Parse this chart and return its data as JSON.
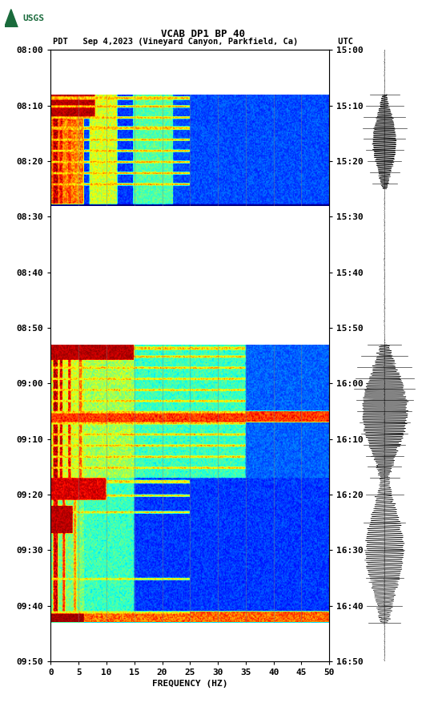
{
  "title_line1": "VCAB DP1 BP 40",
  "title_line2": "PDT   Sep 4,2023 (Vineyard Canyon, Parkfield, Ca)        UTC",
  "left_times": [
    "08:00",
    "08:10",
    "08:20",
    "08:30",
    "08:40",
    "08:50",
    "09:00",
    "09:10",
    "09:20",
    "09:30",
    "09:40",
    "09:50"
  ],
  "right_times": [
    "15:00",
    "15:10",
    "15:20",
    "15:30",
    "15:40",
    "15:50",
    "16:00",
    "16:10",
    "16:20",
    "16:30",
    "16:40",
    "16:50"
  ],
  "freq_ticks": [
    0,
    5,
    10,
    15,
    20,
    25,
    30,
    35,
    40,
    45,
    50
  ],
  "xlabel": "FREQUENCY (HZ)",
  "background_color": "#ffffff",
  "grid_color": "#808080",
  "usgs_green": "#1a6b3c",
  "font_size_title": 9,
  "font_size_axis": 8,
  "font_size_ticks": 8,
  "block1_t": [
    8,
    28
  ],
  "block2_t": [
    53,
    77
  ],
  "block3_t": [
    77,
    103
  ],
  "total_minutes": 110,
  "freq_max": 50
}
